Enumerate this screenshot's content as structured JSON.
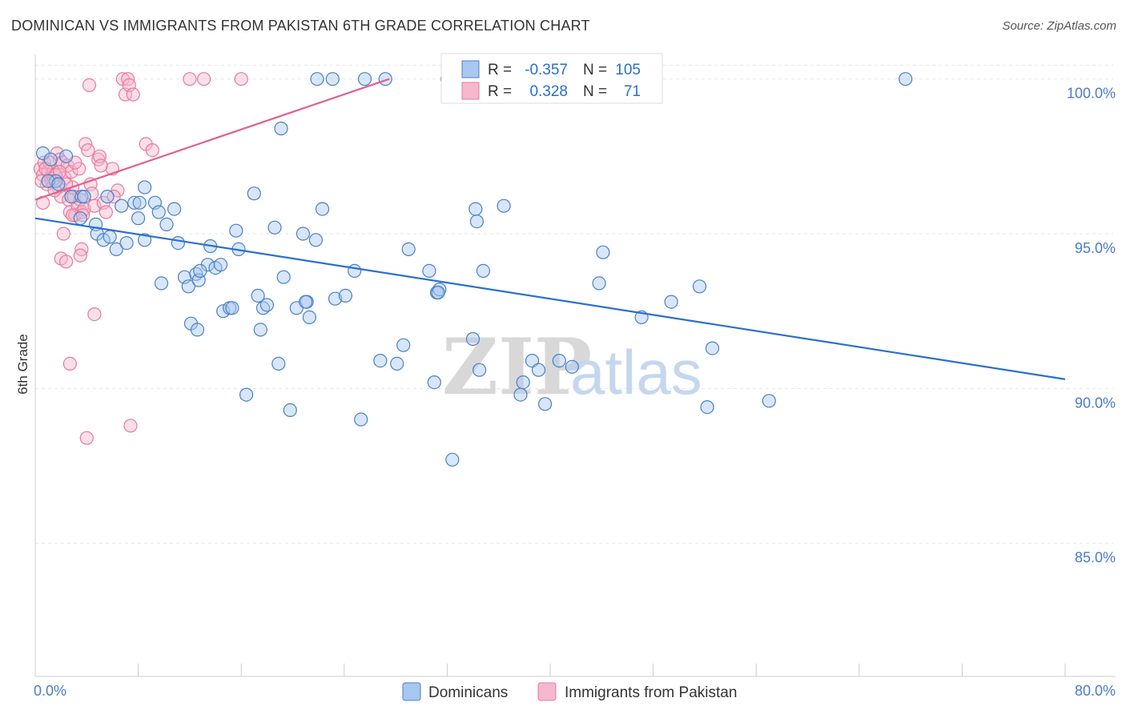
{
  "title": "DOMINICAN VS IMMIGRANTS FROM PAKISTAN 6TH GRADE CORRELATION CHART",
  "source": "Source: ZipAtlas.com",
  "watermark": {
    "zip": "ZIP",
    "atlas": "atlas"
  },
  "colors": {
    "blue_fill": "#a8c8f0",
    "blue_stroke": "#4a80c8",
    "blue_line": "#2a6fd0",
    "pink_fill": "#f5b8cc",
    "pink_stroke": "#e8799c",
    "pink_line": "#e06090",
    "grid": "#e6e6e6",
    "axis_text": "#4a7cc7"
  },
  "legend": {
    "rows": [
      {
        "r_label": "R =",
        "r_value": "-0.357",
        "n_label": "N =",
        "n_value": "105"
      },
      {
        "r_label": "R =",
        "r_value": "0.328",
        "n_label": "N =",
        "n_value": "71"
      }
    ]
  },
  "chart_data": {
    "type": "scatter",
    "title": "DOMINICAN VS IMMIGRANTS FROM PAKISTAN 6TH GRADE CORRELATION CHART",
    "xlabel": "",
    "ylabel": "6th Grade",
    "xlim": [
      0,
      80
    ],
    "ylim": [
      80.7,
      101.0
    ],
    "x_tick_labels": [
      "0.0%",
      "80.0%"
    ],
    "y_ticks": [
      {
        "value": 100,
        "label": "100.0%"
      },
      {
        "value": 95,
        "label": "95.0%"
      },
      {
        "value": 90,
        "label": "90.0%"
      },
      {
        "value": 85,
        "label": "85.0%"
      }
    ],
    "legend_position": "bottom-center",
    "series": [
      {
        "name": "Dominicans",
        "color": "blue",
        "trend": {
          "x": [
            0,
            80
          ],
          "y": [
            95.5,
            90.3
          ]
        },
        "points": [
          [
            0.6,
            97.6
          ],
          [
            1.2,
            97.4
          ],
          [
            1.6,
            96.7
          ],
          [
            2.8,
            96.2
          ],
          [
            3.6,
            96.2
          ],
          [
            1.0,
            96.7
          ],
          [
            3.8,
            96.2
          ],
          [
            4.7,
            95.3
          ],
          [
            4.8,
            95.0
          ],
          [
            5.3,
            94.8
          ],
          [
            5.8,
            94.9
          ],
          [
            6.3,
            94.5
          ],
          [
            7.1,
            94.7
          ],
          [
            5.6,
            96.2
          ],
          [
            6.7,
            95.9
          ],
          [
            7.7,
            96.0
          ],
          [
            8.5,
            96.5
          ],
          [
            8.0,
            95.5
          ],
          [
            8.5,
            94.8
          ],
          [
            9.3,
            96.0
          ],
          [
            9.6,
            95.7
          ],
          [
            10.2,
            95.3
          ],
          [
            10.8,
            95.8
          ],
          [
            11.1,
            94.7
          ],
          [
            9.8,
            93.4
          ],
          [
            11.6,
            93.6
          ],
          [
            11.9,
            93.3
          ],
          [
            12.5,
            93.7
          ],
          [
            12.7,
            93.5
          ],
          [
            12.1,
            92.1
          ],
          [
            12.6,
            91.9
          ],
          [
            13.4,
            94.0
          ],
          [
            13.6,
            94.6
          ],
          [
            14.0,
            93.9
          ],
          [
            14.4,
            94.0
          ],
          [
            14.6,
            92.5
          ],
          [
            15.1,
            92.6
          ],
          [
            15.6,
            95.1
          ],
          [
            15.8,
            94.5
          ],
          [
            16.4,
            89.8
          ],
          [
            17.0,
            96.3
          ],
          [
            17.3,
            93.0
          ],
          [
            17.5,
            91.9
          ],
          [
            17.7,
            92.6
          ],
          [
            18.0,
            92.7
          ],
          [
            18.6,
            95.2
          ],
          [
            18.9,
            90.8
          ],
          [
            19.3,
            93.6
          ],
          [
            19.8,
            89.3
          ],
          [
            20.3,
            92.6
          ],
          [
            20.8,
            95.0
          ],
          [
            21.1,
            92.8
          ],
          [
            21.3,
            92.3
          ],
          [
            21.8,
            94.8
          ],
          [
            21.9,
            100.0
          ],
          [
            22.3,
            95.8
          ],
          [
            23.1,
            100.0
          ],
          [
            23.3,
            92.9
          ],
          [
            24.1,
            93.0
          ],
          [
            24.8,
            93.8
          ],
          [
            25.3,
            89.0
          ],
          [
            25.6,
            100.0
          ],
          [
            26.8,
            90.9
          ],
          [
            27.2,
            100.0
          ],
          [
            28.1,
            90.8
          ],
          [
            28.6,
            91.4
          ],
          [
            29.0,
            94.5
          ],
          [
            30.6,
            93.8
          ],
          [
            31.0,
            90.2
          ],
          [
            31.2,
            93.1
          ],
          [
            31.4,
            93.2
          ],
          [
            32.0,
            100.0
          ],
          [
            32.4,
            87.7
          ],
          [
            33.2,
            100.0
          ],
          [
            34.0,
            91.6
          ],
          [
            34.2,
            95.8
          ],
          [
            34.3,
            95.4
          ],
          [
            34.5,
            90.6
          ],
          [
            34.8,
            93.8
          ],
          [
            36.4,
            95.9
          ],
          [
            37.7,
            89.8
          ],
          [
            37.9,
            90.2
          ],
          [
            38.6,
            90.9
          ],
          [
            39.1,
            90.6
          ],
          [
            39.6,
            89.5
          ],
          [
            40.7,
            90.9
          ],
          [
            41.7,
            90.7
          ],
          [
            43.8,
            93.4
          ],
          [
            44.1,
            94.4
          ],
          [
            47.1,
            92.3
          ],
          [
            49.4,
            92.8
          ],
          [
            51.6,
            93.3
          ],
          [
            52.2,
            89.4
          ],
          [
            52.6,
            91.3
          ],
          [
            57.0,
            89.6
          ],
          [
            67.6,
            100.0
          ],
          [
            31.3,
            93.1
          ],
          [
            15.3,
            92.6
          ],
          [
            3.5,
            95.5
          ],
          [
            8.1,
            96.0
          ],
          [
            2.4,
            97.5
          ],
          [
            1.8,
            96.6
          ],
          [
            12.8,
            93.8
          ],
          [
            21.0,
            92.8
          ],
          [
            19.1,
            98.4
          ]
        ]
      },
      {
        "name": "Immigrants from Pakistan",
        "color": "pink",
        "trend": {
          "x": [
            0,
            27.5
          ],
          "y": [
            96.1,
            100.0
          ]
        },
        "points": [
          [
            0.4,
            97.1
          ],
          [
            0.6,
            96.9
          ],
          [
            0.7,
            97.3
          ],
          [
            0.9,
            96.6
          ],
          [
            1.0,
            97.0
          ],
          [
            1.2,
            96.8
          ],
          [
            1.4,
            97.0
          ],
          [
            1.5,
            96.9
          ],
          [
            1.7,
            97.6
          ],
          [
            1.8,
            96.5
          ],
          [
            1.9,
            97.4
          ],
          [
            2.0,
            96.2
          ],
          [
            2.1,
            97.3
          ],
          [
            2.3,
            96.8
          ],
          [
            2.5,
            97.2
          ],
          [
            2.6,
            96.1
          ],
          [
            2.7,
            95.7
          ],
          [
            2.8,
            97.0
          ],
          [
            2.9,
            96.5
          ],
          [
            3.0,
            96.2
          ],
          [
            3.1,
            95.6
          ],
          [
            3.3,
            95.9
          ],
          [
            3.4,
            97.1
          ],
          [
            3.5,
            96.1
          ],
          [
            3.6,
            95.7
          ],
          [
            3.8,
            95.8
          ],
          [
            3.9,
            97.9
          ],
          [
            4.1,
            97.7
          ],
          [
            4.3,
            96.6
          ],
          [
            4.6,
            95.9
          ],
          [
            4.9,
            97.4
          ],
          [
            5.0,
            97.5
          ],
          [
            5.3,
            96.0
          ],
          [
            5.5,
            95.7
          ],
          [
            6.0,
            97.1
          ],
          [
            6.4,
            96.4
          ],
          [
            6.8,
            100.0
          ],
          [
            7.0,
            99.5
          ],
          [
            7.2,
            100.0
          ],
          [
            7.3,
            99.8
          ],
          [
            7.6,
            99.5
          ],
          [
            8.6,
            97.9
          ],
          [
            9.1,
            97.7
          ],
          [
            12.0,
            100.0
          ],
          [
            13.1,
            100.0
          ],
          [
            16.0,
            100.0
          ],
          [
            4.2,
            99.8
          ],
          [
            3.6,
            94.5
          ],
          [
            3.5,
            94.3
          ],
          [
            2.0,
            94.2
          ],
          [
            2.4,
            94.1
          ],
          [
            4.6,
            92.4
          ],
          [
            2.7,
            90.8
          ],
          [
            4.0,
            88.4
          ],
          [
            7.4,
            88.8
          ],
          [
            0.6,
            96.0
          ],
          [
            1.1,
            97.3
          ],
          [
            1.6,
            96.9
          ],
          [
            2.2,
            95.0
          ],
          [
            3.1,
            97.3
          ],
          [
            0.8,
            97.1
          ],
          [
            1.3,
            96.7
          ],
          [
            5.1,
            97.2
          ],
          [
            2.4,
            96.6
          ],
          [
            1.9,
            97.0
          ],
          [
            0.5,
            96.7
          ],
          [
            6.1,
            96.2
          ],
          [
            4.4,
            96.3
          ],
          [
            2.9,
            95.6
          ],
          [
            1.5,
            96.4
          ],
          [
            3.7,
            95.6
          ]
        ]
      }
    ]
  }
}
